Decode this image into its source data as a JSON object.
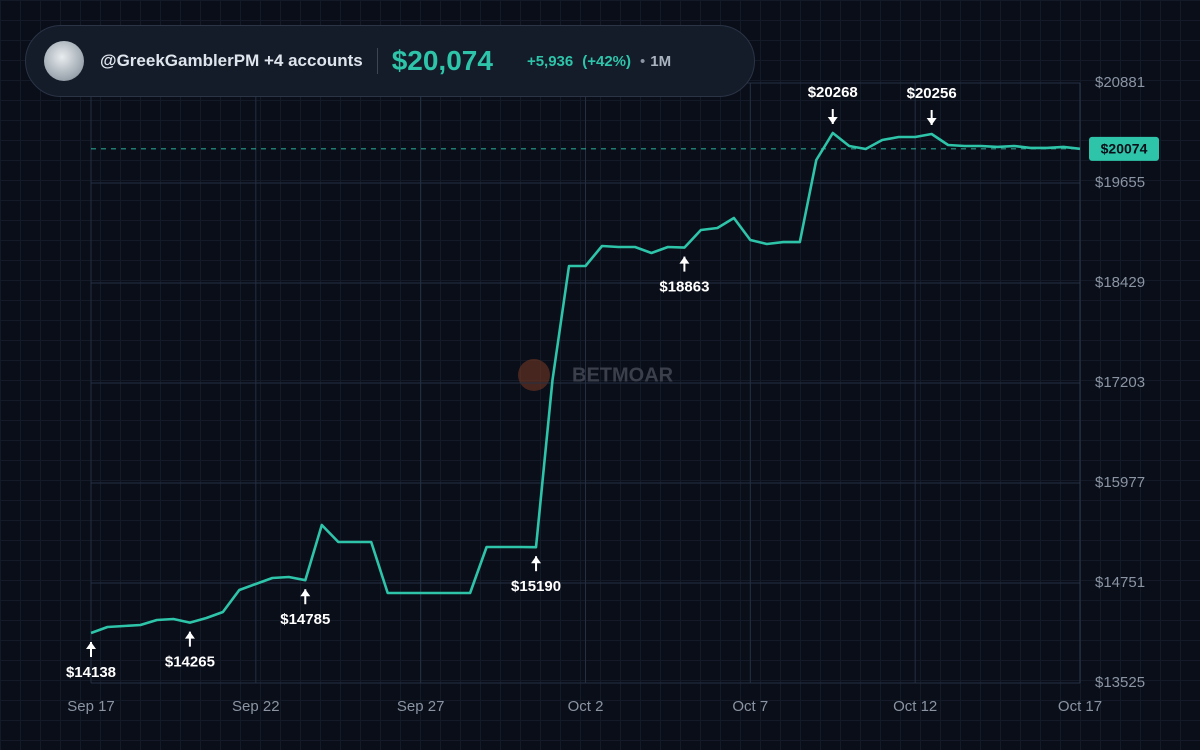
{
  "header": {
    "account": "@GreekGamblerPM +4 accounts",
    "balance": "$20,074",
    "change": "+5,936",
    "change_pct": "(+42%)",
    "period": "1M"
  },
  "watermark": "BETMOAR",
  "chart_data": {
    "type": "line",
    "color": "#2ec4a9",
    "categories": [
      "Sep 17",
      null,
      null,
      null,
      null,
      null,
      null,
      null,
      null,
      null,
      "Sep 22",
      null,
      null,
      null,
      null,
      null,
      null,
      null,
      null,
      null,
      "Sep 27",
      null,
      null,
      null,
      null,
      null,
      null,
      null,
      null,
      null,
      "Oct 2",
      null,
      null,
      null,
      null,
      null,
      null,
      null,
      null,
      null,
      "Oct 7",
      null,
      null,
      null,
      null,
      null,
      null,
      null,
      null,
      null,
      "Oct 12",
      null,
      null,
      null,
      null,
      null,
      null,
      null,
      null,
      null,
      "Oct 17"
    ],
    "values": [
      14138,
      14212,
      14224,
      14236,
      14297,
      14310,
      14265,
      14322,
      14395,
      14665,
      14739,
      14812,
      14824,
      14785,
      15462,
      15254,
      15254,
      15254,
      14628,
      14628,
      14628,
      14628,
      14628,
      14628,
      15192,
      15192,
      15192,
      15190,
      17240,
      18637,
      18637,
      18883,
      18870,
      18870,
      18797,
      18870,
      18863,
      19079,
      19103,
      19226,
      18956,
      18907,
      18931,
      18931,
      19937,
      20268,
      20109,
      20072,
      20182,
      20219,
      20219,
      20256,
      20121,
      20109,
      20109,
      20097,
      20109,
      20085,
      20085,
      20097,
      20074
    ],
    "value_labels": [
      "$14138",
      null,
      null,
      null,
      null,
      null,
      "$14265",
      null,
      null,
      null,
      null,
      null,
      null,
      "$14785",
      null,
      null,
      null,
      null,
      null,
      null,
      null,
      null,
      null,
      null,
      null,
      null,
      null,
      "$15190",
      null,
      null,
      null,
      null,
      null,
      null,
      null,
      null,
      "$18863",
      null,
      null,
      null,
      null,
      null,
      null,
      null,
      null,
      "$20268",
      null,
      null,
      null,
      null,
      null,
      "$20256",
      null,
      null,
      null,
      null,
      null,
      null,
      null,
      null,
      null
    ],
    "current_label": "$20074",
    "ylim": [
      13525,
      20881
    ],
    "yticks": [
      {
        "value": 13525,
        "label": "$13525"
      },
      {
        "value": 14751,
        "label": "$14751"
      },
      {
        "value": 15977,
        "label": "$15977"
      },
      {
        "value": 17203,
        "label": "$17203"
      },
      {
        "value": 18429,
        "label": "$18429"
      },
      {
        "value": 19655,
        "label": "$19655"
      },
      {
        "value": 20881,
        "label": "$20881"
      }
    ],
    "grid": true
  }
}
